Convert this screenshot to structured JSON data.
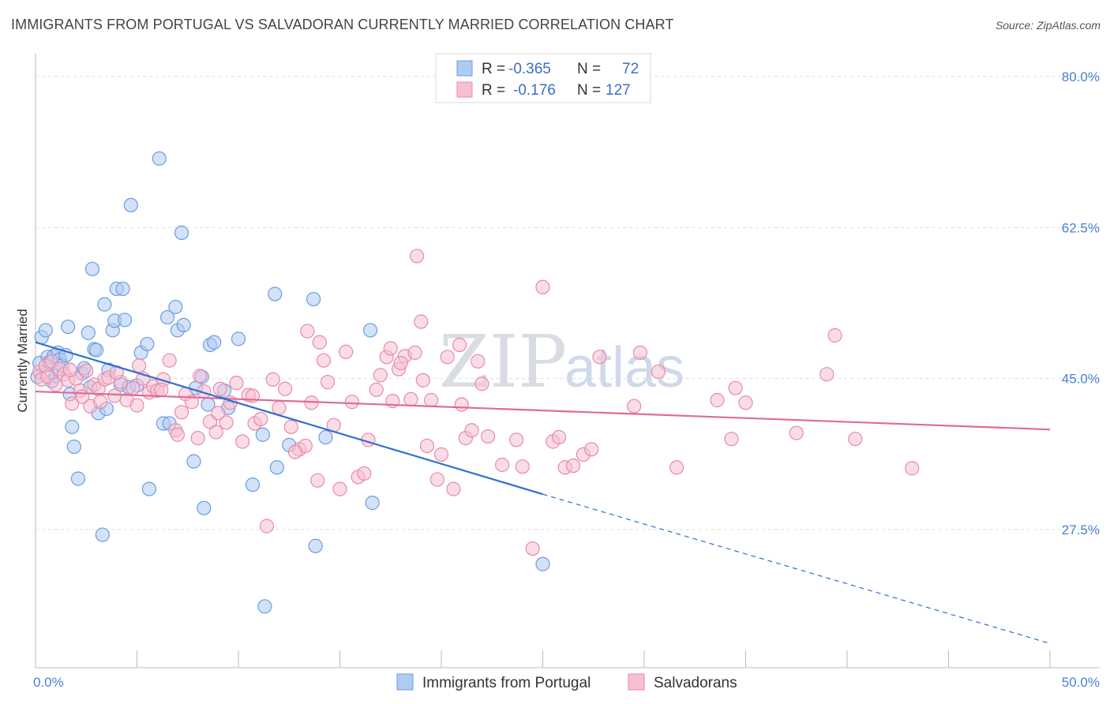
{
  "header": {
    "title": "IMMIGRANTS FROM PORTUGAL VS SALVADORAN CURRENTLY MARRIED CORRELATION CHART",
    "source": "Source: ZipAtlas.com"
  },
  "watermark": {
    "zip": "ZIP",
    "atlas": "atlas"
  },
  "legend": {
    "rows": [
      {
        "r_label": "R =",
        "r_value": "-0.365",
        "n_label": "N =",
        "n_value": "72"
      },
      {
        "r_label": "R =",
        "r_value": "-0.176",
        "n_label": "N =",
        "n_value": "127"
      }
    ]
  },
  "chart_data": {
    "type": "scatter",
    "title": "IMMIGRANTS FROM PORTUGAL VS SALVADORAN CURRENTLY MARRIED CORRELATION CHART",
    "xlabel": "",
    "ylabel": "Currently Married",
    "xlim": [
      0,
      50
    ],
    "ylim": [
      10,
      85
    ],
    "x_tick_labels": [
      "0.0%",
      "50.0%"
    ],
    "y_ticks": [
      27.5,
      45.0,
      62.5,
      80.0
    ],
    "y_tick_labels": [
      "27.5%",
      "45.0%",
      "62.5%",
      "80.0%"
    ],
    "grid": "horizontal dashed",
    "legend_placement": "top-center",
    "series": [
      {
        "name": "Immigrants from Portugal",
        "color": "#6a9de0",
        "fill": "#aecbf2",
        "trend": {
          "x0": 0,
          "y0": 49.2,
          "x1": 25,
          "y1": 31.6,
          "dashed_to": [
            50,
            14.3
          ]
        },
        "points": [
          [
            0.1,
            45.2
          ],
          [
            0.2,
            46.8
          ],
          [
            0.3,
            49.8
          ],
          [
            0.5,
            50.6
          ],
          [
            0.6,
            47.5
          ],
          [
            0.7,
            46.9
          ],
          [
            0.8,
            44.7
          ],
          [
            0.9,
            47.6
          ],
          [
            1.0,
            45.3
          ],
          [
            1.1,
            48.0
          ],
          [
            1.2,
            47.2
          ],
          [
            1.3,
            46.5
          ],
          [
            1.5,
            47.7
          ],
          [
            1.6,
            51.0
          ],
          [
            1.7,
            43.2
          ],
          [
            1.8,
            39.4
          ],
          [
            1.9,
            37.1
          ],
          [
            2.1,
            33.4
          ],
          [
            2.3,
            45.6
          ],
          [
            2.4,
            46.2
          ],
          [
            2.6,
            50.3
          ],
          [
            2.7,
            44.0
          ],
          [
            2.8,
            57.7
          ],
          [
            2.9,
            48.4
          ],
          [
            3.0,
            48.3
          ],
          [
            3.1,
            41.0
          ],
          [
            3.3,
            26.9
          ],
          [
            3.4,
            53.6
          ],
          [
            3.5,
            41.5
          ],
          [
            3.6,
            46.0
          ],
          [
            3.8,
            50.6
          ],
          [
            3.9,
            51.7
          ],
          [
            4.0,
            55.4
          ],
          [
            4.2,
            44.3
          ],
          [
            4.3,
            55.4
          ],
          [
            4.4,
            51.8
          ],
          [
            4.6,
            44.0
          ],
          [
            4.7,
            65.1
          ],
          [
            5.0,
            44.2
          ],
          [
            5.2,
            48.0
          ],
          [
            5.5,
            49.0
          ],
          [
            5.6,
            32.2
          ],
          [
            6.1,
            70.5
          ],
          [
            6.3,
            39.8
          ],
          [
            6.5,
            52.1
          ],
          [
            6.6,
            39.8
          ],
          [
            6.9,
            53.3
          ],
          [
            7.0,
            50.6
          ],
          [
            7.2,
            61.9
          ],
          [
            7.3,
            51.2
          ],
          [
            7.8,
            35.4
          ],
          [
            7.9,
            43.9
          ],
          [
            8.2,
            45.2
          ],
          [
            8.3,
            30.0
          ],
          [
            8.5,
            42.0
          ],
          [
            8.6,
            48.9
          ],
          [
            8.8,
            49.2
          ],
          [
            9.3,
            43.6
          ],
          [
            9.5,
            41.6
          ],
          [
            10.0,
            49.6
          ],
          [
            10.7,
            32.7
          ],
          [
            11.2,
            38.5
          ],
          [
            11.3,
            18.6
          ],
          [
            11.8,
            54.8
          ],
          [
            11.9,
            34.7
          ],
          [
            12.5,
            37.3
          ],
          [
            13.7,
            54.2
          ],
          [
            13.8,
            25.6
          ],
          [
            14.3,
            38.2
          ],
          [
            16.5,
            50.6
          ],
          [
            16.6,
            30.6
          ],
          [
            25.0,
            23.5
          ]
        ]
      },
      {
        "name": "Salvadorans",
        "color": "#e88aaa",
        "fill": "#f6bfd2",
        "trend": {
          "x0": 0,
          "y0": 43.5,
          "x1": 50,
          "y1": 39.1
        },
        "points": [
          [
            0.2,
            45.8
          ],
          [
            0.3,
            44.9
          ],
          [
            0.5,
            46.5
          ],
          [
            0.6,
            45.2
          ],
          [
            0.8,
            47.0
          ],
          [
            1.0,
            44.3
          ],
          [
            1.2,
            46.1
          ],
          [
            1.4,
            45.5
          ],
          [
            1.6,
            44.8
          ],
          [
            1.8,
            42.1
          ],
          [
            2.0,
            45.0
          ],
          [
            2.2,
            43.6
          ],
          [
            2.5,
            45.9
          ],
          [
            2.7,
            41.8
          ],
          [
            2.9,
            44.3
          ],
          [
            3.1,
            43.8
          ],
          [
            3.4,
            44.9
          ],
          [
            3.6,
            45.1
          ],
          [
            3.9,
            43.0
          ],
          [
            4.2,
            44.6
          ],
          [
            4.5,
            42.5
          ],
          [
            4.8,
            43.9
          ],
          [
            5.0,
            41.9
          ],
          [
            5.3,
            45.0
          ],
          [
            5.6,
            43.4
          ],
          [
            5.8,
            44.1
          ],
          [
            6.0,
            43.6
          ],
          [
            6.3,
            44.9
          ],
          [
            6.6,
            47.1
          ],
          [
            6.9,
            39.0
          ],
          [
            7.2,
            41.1
          ],
          [
            7.4,
            43.2
          ],
          [
            7.7,
            42.3
          ],
          [
            8.0,
            38.1
          ],
          [
            8.3,
            43.5
          ],
          [
            8.6,
            40.0
          ],
          [
            8.9,
            38.8
          ],
          [
            9.1,
            43.8
          ],
          [
            9.4,
            39.9
          ],
          [
            9.6,
            42.2
          ],
          [
            9.9,
            44.5
          ],
          [
            10.2,
            37.7
          ],
          [
            10.5,
            43.1
          ],
          [
            10.8,
            39.8
          ],
          [
            11.1,
            40.3
          ],
          [
            11.4,
            27.9
          ],
          [
            11.7,
            44.9
          ],
          [
            12.0,
            41.6
          ],
          [
            12.3,
            43.8
          ],
          [
            12.6,
            39.4
          ],
          [
            13.0,
            36.8
          ],
          [
            13.3,
            37.2
          ],
          [
            13.6,
            42.2
          ],
          [
            13.9,
            33.2
          ],
          [
            14.2,
            47.1
          ],
          [
            14.4,
            44.6
          ],
          [
            14.7,
            39.6
          ],
          [
            15.0,
            32.2
          ],
          [
            15.3,
            48.1
          ],
          [
            15.6,
            42.3
          ],
          [
            15.9,
            33.6
          ],
          [
            16.2,
            34.0
          ],
          [
            16.4,
            37.9
          ],
          [
            16.8,
            43.7
          ],
          [
            17.0,
            45.4
          ],
          [
            17.3,
            47.5
          ],
          [
            17.6,
            42.4
          ],
          [
            17.9,
            46.1
          ],
          [
            18.2,
            47.6
          ],
          [
            18.5,
            42.6
          ],
          [
            18.7,
            48.0
          ],
          [
            19.0,
            51.6
          ],
          [
            19.3,
            37.2
          ],
          [
            19.5,
            42.5
          ],
          [
            19.8,
            33.3
          ],
          [
            20.0,
            36.2
          ],
          [
            20.3,
            47.5
          ],
          [
            20.6,
            32.2
          ],
          [
            21.0,
            42.0
          ],
          [
            21.2,
            38.1
          ],
          [
            21.5,
            39.0
          ],
          [
            21.8,
            47.0
          ],
          [
            22.0,
            44.4
          ],
          [
            22.3,
            38.3
          ],
          [
            23.0,
            35.0
          ],
          [
            23.7,
            37.9
          ],
          [
            24.0,
            34.8
          ],
          [
            24.5,
            25.3
          ],
          [
            25.0,
            55.6
          ],
          [
            25.5,
            37.7
          ],
          [
            25.8,
            38.2
          ],
          [
            26.1,
            34.7
          ],
          [
            26.5,
            34.9
          ],
          [
            27.0,
            36.2
          ],
          [
            27.4,
            36.8
          ],
          [
            27.8,
            47.5
          ],
          [
            29.5,
            41.8
          ],
          [
            29.8,
            48.0
          ],
          [
            30.7,
            45.8
          ],
          [
            31.6,
            34.7
          ],
          [
            33.6,
            42.5
          ],
          [
            34.3,
            38.0
          ],
          [
            34.5,
            43.9
          ],
          [
            35.0,
            42.2
          ],
          [
            37.5,
            38.7
          ],
          [
            39.0,
            45.5
          ],
          [
            39.4,
            50.0
          ],
          [
            40.4,
            38.0
          ],
          [
            43.2,
            34.6
          ],
          [
            19.1,
            44.8
          ],
          [
            18.0,
            46.8
          ],
          [
            20.9,
            48.9
          ],
          [
            17.5,
            48.5
          ],
          [
            14.0,
            49.2
          ],
          [
            13.4,
            50.5
          ],
          [
            10.7,
            43.0
          ],
          [
            9.0,
            41.0
          ],
          [
            8.1,
            45.3
          ],
          [
            7.0,
            38.5
          ],
          [
            6.2,
            43.7
          ],
          [
            5.1,
            46.5
          ],
          [
            4.0,
            45.7
          ],
          [
            3.2,
            42.3
          ],
          [
            2.3,
            42.9
          ],
          [
            1.7,
            46.0
          ],
          [
            12.8,
            36.5
          ],
          [
            18.8,
            59.2
          ]
        ]
      }
    ]
  }
}
